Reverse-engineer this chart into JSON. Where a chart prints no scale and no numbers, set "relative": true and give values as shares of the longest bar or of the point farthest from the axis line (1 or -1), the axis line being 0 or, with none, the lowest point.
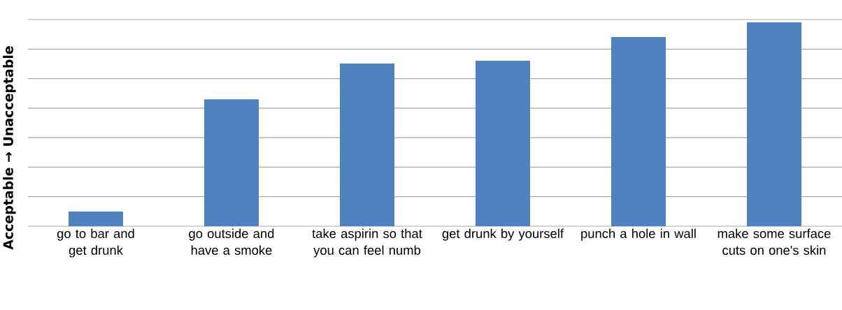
{
  "chart_data": {
    "type": "bar",
    "relative": true,
    "ylabel": "Acceptable → Unacceptable",
    "categories": [
      "go to bar and get drunk",
      "go outside and have a smoke",
      "take aspirin so that you can feel numb",
      "get drunk by yourself",
      "punch a hole in wall",
      "make some surface cuts on one's skin"
    ],
    "values": [
      0.072,
      0.623,
      0.798,
      0.812,
      0.928,
      1
    ],
    "color": "#4f81bd",
    "grid": "y"
  }
}
